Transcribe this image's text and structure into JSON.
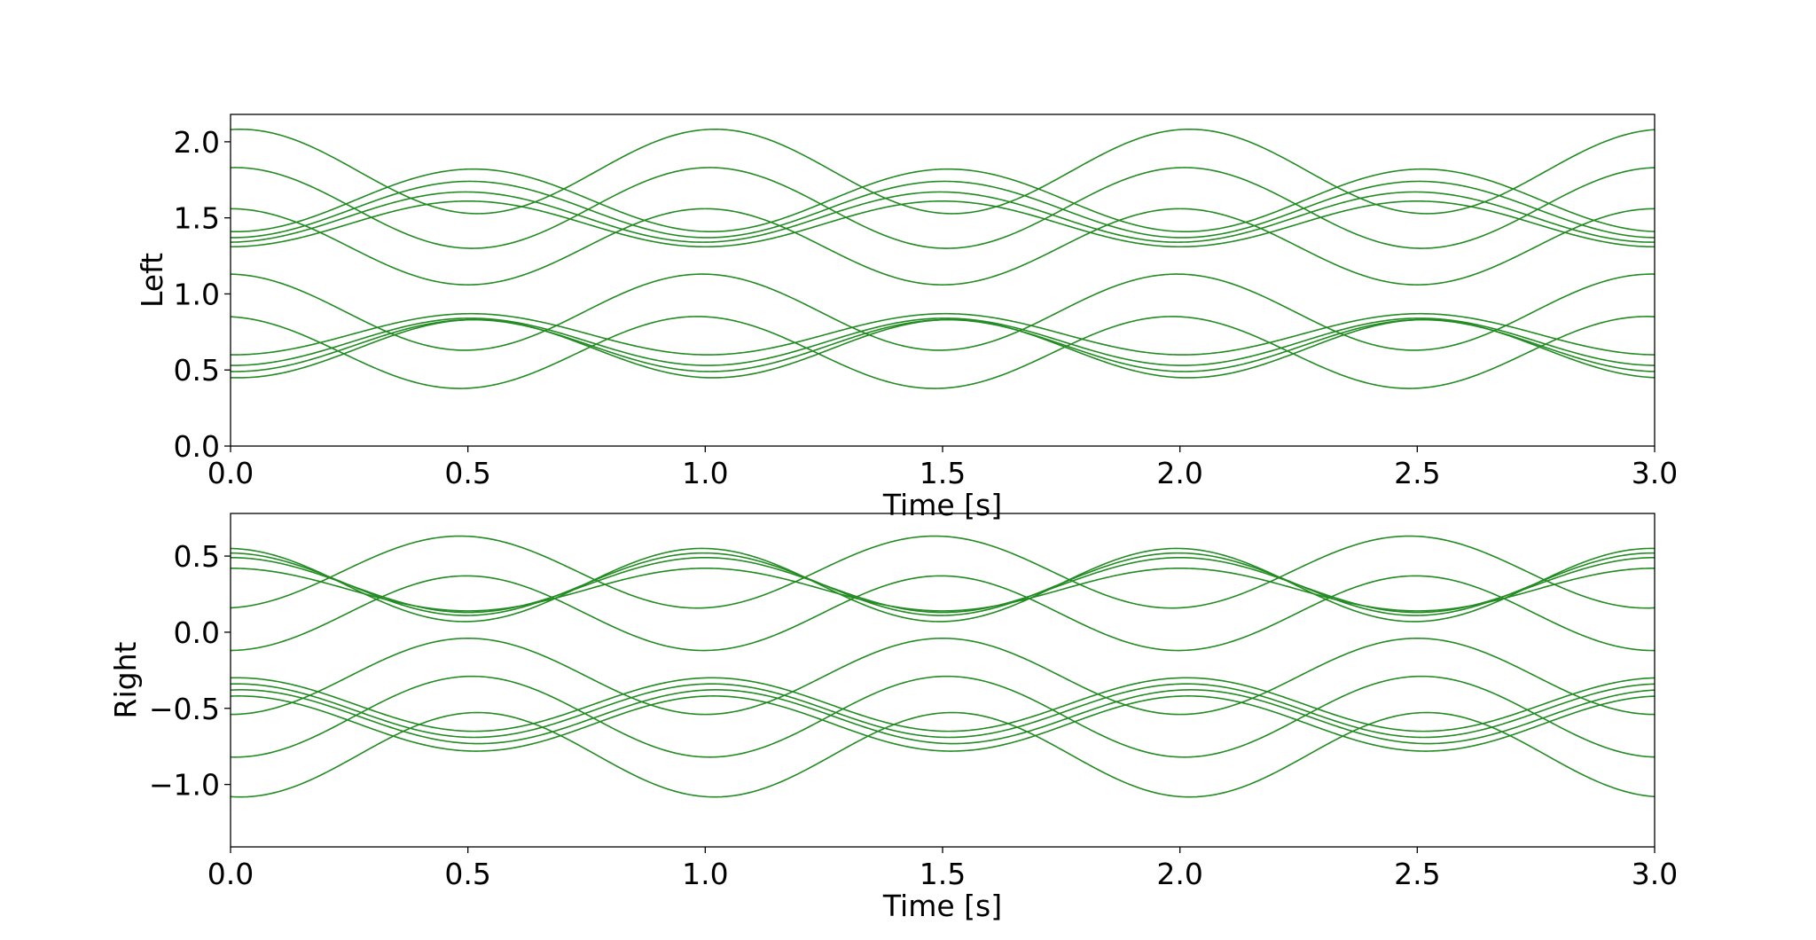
{
  "chart_data": [
    {
      "type": "line",
      "panel": "top",
      "ylabel": "Left",
      "xlabel": "Time [s]",
      "xlim": [
        0,
        3
      ],
      "ylim": [
        0,
        2.18
      ],
      "xticks": [
        "0.0",
        "0.5",
        "1.0",
        "1.5",
        "2.0",
        "2.5",
        "3.0"
      ],
      "yticks": [
        "0.0",
        "0.5",
        "1.0",
        "1.5",
        "2.0"
      ],
      "grid": false,
      "line_color": "#228b22",
      "series": [
        {
          "values_at_x0_0_25_0_5": [
            1.41,
            1.6,
            1.82
          ]
        },
        {
          "values_at_x0_0_25_0_5": [
            1.37,
            1.55,
            1.74
          ]
        },
        {
          "values_at_x0_0_25_0_5": [
            1.34,
            1.51,
            1.67
          ]
        },
        {
          "values_at_x0_0_25_0_5": [
            1.31,
            1.46,
            1.61
          ]
        },
        {
          "values_at_x0_0_25_0_5": [
            0.45,
            0.62,
            0.83
          ]
        },
        {
          "values_at_x0_0_25_0_5": [
            0.49,
            0.65,
            0.83
          ]
        },
        {
          "values_at_x0_0_25_0_5": [
            0.53,
            0.68,
            0.84
          ]
        },
        {
          "values_at_x0_0_25_0_5": [
            0.6,
            0.73,
            0.87
          ]
        },
        {
          "values_at_x0_0_25_0_5": [
            2.08,
            1.84,
            1.53
          ]
        },
        {
          "values_at_x0_0_25_0_5": [
            1.83,
            1.58,
            1.3
          ]
        },
        {
          "values_at_x0_0_25_0_5": [
            1.56,
            1.31,
            1.06
          ]
        },
        {
          "values_at_x0_0_25_0_5": [
            1.13,
            0.87,
            0.63
          ]
        },
        {
          "values_at_x0_0_25_0_5": [
            0.85,
            0.59,
            0.38
          ]
        }
      ]
    },
    {
      "type": "line",
      "panel": "bottom",
      "ylabel": "Right",
      "xlabel": "Time [s]",
      "xlim": [
        0,
        3
      ],
      "ylim": [
        -1.41,
        0.78
      ],
      "xticks": [
        "0.0",
        "0.5",
        "1.0",
        "1.5",
        "2.0",
        "2.5",
        "3.0"
      ],
      "yticks": [
        "0.5",
        "0.0",
        "−0.5",
        "−1.0"
      ],
      "grid": false,
      "line_color": "#228b22",
      "series": [
        {
          "values_at_x0_0_25_0_5": [
            0.55,
            0.3,
            0.07
          ]
        },
        {
          "values_at_x0_0_25_0_5": [
            0.52,
            0.31,
            0.11
          ]
        },
        {
          "values_at_x0_0_25_0_5": [
            0.49,
            0.31,
            0.13
          ]
        },
        {
          "values_at_x0_0_25_0_5": [
            0.42,
            0.28,
            0.14
          ]
        },
        {
          "values_at_x0_0_25_0_5": [
            -0.3,
            -0.46,
            -0.65
          ]
        },
        {
          "values_at_x0_0_25_0_5": [
            -0.34,
            -0.5,
            -0.69
          ]
        },
        {
          "values_at_x0_0_25_0_5": [
            -0.38,
            -0.53,
            -0.73
          ]
        },
        {
          "values_at_x0_0_25_0_5": [
            -0.42,
            -0.58,
            -0.78
          ]
        },
        {
          "values_at_x0_0_25_0_5": [
            -1.08,
            -0.84,
            -0.53
          ]
        },
        {
          "values_at_x0_0_25_0_5": [
            -0.82,
            -0.57,
            -0.29
          ]
        },
        {
          "values_at_x0_0_25_0_5": [
            -0.54,
            -0.29,
            -0.04
          ]
        },
        {
          "values_at_x0_0_25_0_5": [
            -0.12,
            0.13,
            0.37
          ]
        },
        {
          "values_at_x0_0_25_0_5": [
            0.16,
            0.42,
            0.63
          ]
        }
      ]
    }
  ]
}
